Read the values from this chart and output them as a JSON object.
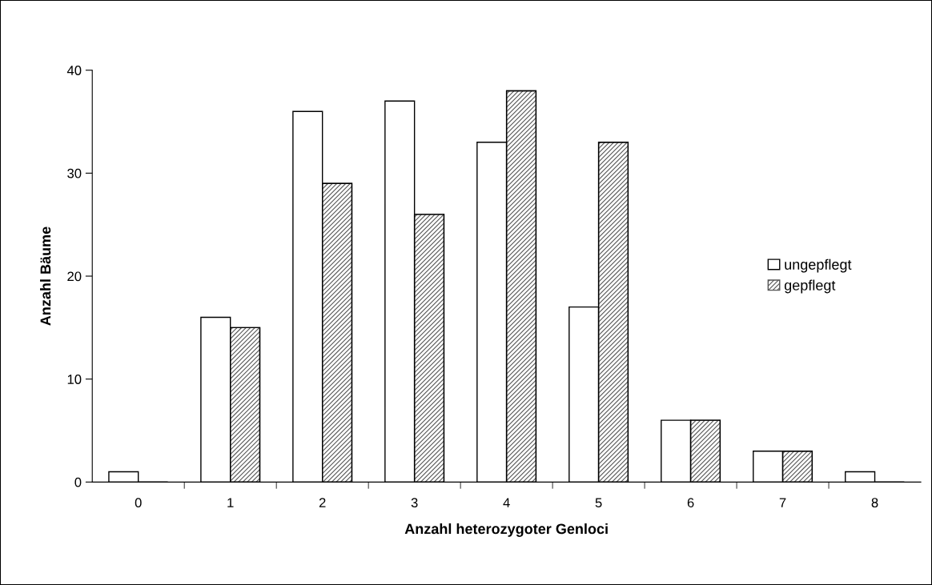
{
  "chart_data": {
    "type": "bar",
    "xlabel": "Anzahl heterozygoter Genloci",
    "ylabel": "Anzahl Bäume",
    "categories": [
      "0",
      "1",
      "2",
      "3",
      "4",
      "5",
      "6",
      "7",
      "8"
    ],
    "series": [
      {
        "name": "ungepflegt",
        "color": "#ffffff",
        "values": [
          1,
          16,
          36,
          37,
          33,
          17,
          6,
          3,
          1
        ]
      },
      {
        "name": "gepflegt",
        "color": "#555555",
        "values": [
          0,
          15,
          29,
          26,
          38,
          33,
          6,
          3,
          0
        ]
      }
    ],
    "ylim": [
      0,
      40
    ],
    "yticks": [
      0,
      10,
      20,
      30,
      40
    ],
    "grid": false,
    "legend": "right"
  }
}
